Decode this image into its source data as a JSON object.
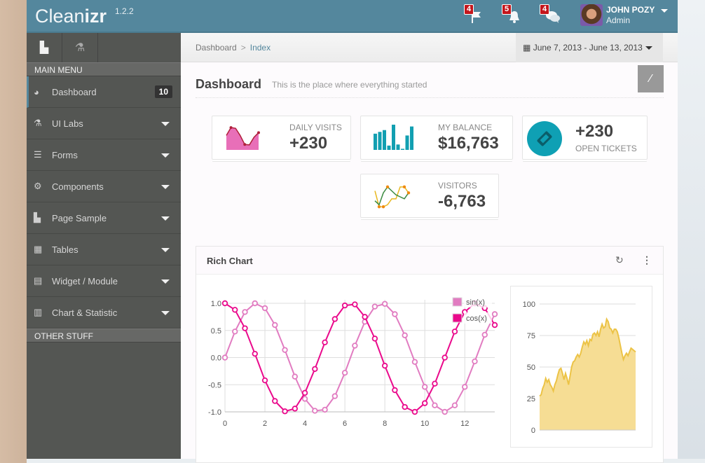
{
  "header": {
    "brand_light": "Clean",
    "brand_bold": "izr",
    "version": "1.2.2",
    "notifications": [
      {
        "icon": "flag-icon",
        "count": "4"
      },
      {
        "icon": "bell-icon",
        "count": "5"
      },
      {
        "icon": "chat-icon",
        "count": "4"
      }
    ],
    "user": {
      "name": "JOHN POZY",
      "role": "Admin"
    }
  },
  "sidebar": {
    "tabs": [
      {
        "icon": "file-icon"
      },
      {
        "icon": "flask-icon"
      }
    ],
    "main_menu": "MAIN MENU",
    "items": [
      {
        "label": "Dashboard",
        "icon": "dashboard-icon",
        "count": "10"
      },
      {
        "label": "UI Labs",
        "icon": "flask-icon"
      },
      {
        "label": "Forms",
        "icon": "list-icon"
      },
      {
        "label": "Components",
        "icon": "cogs-icon"
      },
      {
        "label": "Page Sample",
        "icon": "file-icon"
      },
      {
        "label": "Tables",
        "icon": "table-icon"
      },
      {
        "label": "Widget / Module",
        "icon": "widget-icon"
      },
      {
        "label": "Chart & Statistic",
        "icon": "bar-chart-icon"
      }
    ],
    "other_stuff": "OTHER STUFF"
  },
  "breadcrumb": {
    "items": [
      "Dashboard",
      "Index"
    ]
  },
  "date_range": "June 7, 2013 - June 13, 2013",
  "page": {
    "title": "Dashboard",
    "subtitle": "This is the place where everything started"
  },
  "stats": [
    {
      "label": "DAILY VISITS",
      "value": "+230",
      "spark": [
        40,
        62,
        60,
        40,
        15,
        14,
        35,
        48
      ],
      "color": "#e0589f"
    },
    {
      "label": "MY BALANCE",
      "value": "$16,763",
      "spark": [
        45,
        50,
        55,
        12,
        70,
        15,
        3,
        40,
        65
      ],
      "color": "#129fb1"
    },
    {
      "label": "OPEN TICKETS",
      "value": "+230",
      "color": "#0fa0b4"
    },
    {
      "label": "VISITORS",
      "value": "-6,763",
      "spark_green": [
        20,
        10,
        40,
        55,
        45,
        35,
        30,
        25,
        40
      ],
      "spark_yellow": [
        45,
        5,
        5,
        10,
        25,
        25,
        55,
        55,
        40
      ],
      "color": "#3a9a4a"
    }
  ],
  "rich_chart": {
    "title": "Rich Chart",
    "tools": [
      "refresh-icon",
      "more-icon"
    ]
  },
  "chart_data": [
    {
      "type": "line",
      "title": "",
      "xlim": [
        0,
        13.5
      ],
      "ylim": [
        -1,
        1
      ],
      "xticks": [
        "0",
        "2",
        "4",
        "6",
        "8",
        "10",
        "12"
      ],
      "yticks": [
        "1.0",
        "0.5",
        "0.0",
        "-0.5",
        "-1.0"
      ],
      "legend": "top-right",
      "grid": true,
      "x": [
        0,
        0.5,
        1,
        1.5,
        2,
        2.5,
        3,
        3.5,
        4,
        4.5,
        5,
        5.5,
        6,
        6.5,
        7,
        7.5,
        8,
        8.5,
        9,
        9.5,
        10,
        10.5,
        11,
        11.5,
        12,
        12.5,
        13,
        13.5
      ],
      "series": [
        {
          "name": "sin(x)",
          "color": "#e17cc1",
          "values": [
            0,
            0.48,
            0.84,
            1.0,
            0.91,
            0.6,
            0.14,
            -0.35,
            -0.76,
            -0.98,
            -0.96,
            -0.71,
            -0.28,
            0.22,
            0.66,
            0.94,
            0.99,
            0.8,
            0.41,
            -0.08,
            -0.54,
            -0.88,
            -1.0,
            -0.88,
            -0.54,
            -0.07,
            0.42,
            0.8
          ]
        },
        {
          "name": "cos(x)",
          "color": "#ea0a8c",
          "values": [
            1,
            0.88,
            0.54,
            0.07,
            -0.42,
            -0.8,
            -0.99,
            -0.94,
            -0.65,
            -0.21,
            0.28,
            0.71,
            0.96,
            0.98,
            0.75,
            0.35,
            -0.15,
            -0.6,
            -0.91,
            -1.0,
            -0.84,
            -0.48,
            0.0,
            0.48,
            0.84,
            1.0,
            0.91,
            0.6
          ]
        }
      ]
    },
    {
      "type": "area",
      "ylim": [
        0,
        100
      ],
      "yticks": [
        "100",
        "75",
        "50",
        "25",
        "0"
      ],
      "grid": true,
      "color": "#ecc346",
      "values": [
        27,
        28,
        33,
        36,
        41,
        38,
        40,
        36,
        34,
        31,
        36,
        39,
        44,
        48,
        49,
        45,
        40,
        45,
        41,
        36,
        43,
        50,
        54,
        55,
        58,
        60,
        58,
        61,
        66,
        70,
        68,
        71,
        67,
        72,
        71,
        76,
        77,
        75,
        78,
        74,
        80,
        84,
        81,
        82,
        88,
        86,
        81,
        80,
        77,
        80,
        80,
        78,
        73,
        67,
        61,
        56,
        59,
        61,
        59,
        62,
        65,
        64,
        63,
        62
      ]
    }
  ]
}
